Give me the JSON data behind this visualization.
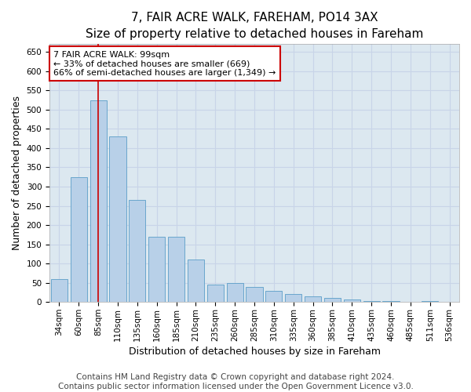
{
  "title": "7, FAIR ACRE WALK, FAREHAM, PO14 3AX",
  "subtitle": "Size of property relative to detached houses in Fareham",
  "xlabel": "Distribution of detached houses by size in Fareham",
  "ylabel": "Number of detached properties",
  "categories": [
    "34sqm",
    "60sqm",
    "85sqm",
    "110sqm",
    "135sqm",
    "160sqm",
    "185sqm",
    "210sqm",
    "235sqm",
    "260sqm",
    "285sqm",
    "310sqm",
    "335sqm",
    "360sqm",
    "385sqm",
    "410sqm",
    "435sqm",
    "460sqm",
    "485sqm",
    "511sqm",
    "536sqm"
  ],
  "values": [
    60,
    325,
    525,
    430,
    265,
    170,
    170,
    110,
    45,
    50,
    40,
    30,
    20,
    15,
    10,
    7,
    3,
    3,
    0,
    3,
    0
  ],
  "bar_color": "#b8d0e8",
  "bar_edge_color": "#5a9ec8",
  "highlighted_bar_index": 2,
  "highlight_line_color": "#cc0000",
  "annotation_text": "7 FAIR ACRE WALK: 99sqm\n← 33% of detached houses are smaller (669)\n66% of semi-detached houses are larger (1,349) →",
  "annotation_box_color": "#ffffff",
  "annotation_box_edge_color": "#cc0000",
  "annotation_fontsize": 8,
  "ylim": [
    0,
    670
  ],
  "yticks": [
    0,
    50,
    100,
    150,
    200,
    250,
    300,
    350,
    400,
    450,
    500,
    550,
    600,
    650
  ],
  "grid_color": "#c8d4e8",
  "plot_background_color": "#dce8f0",
  "figure_background_color": "#ffffff",
  "title_fontsize": 11,
  "xlabel_fontsize": 9,
  "ylabel_fontsize": 9,
  "tick_fontsize": 7.5,
  "footer_text": "Contains HM Land Registry data © Crown copyright and database right 2024.\nContains public sector information licensed under the Open Government Licence v3.0.",
  "footer_fontsize": 7.5
}
